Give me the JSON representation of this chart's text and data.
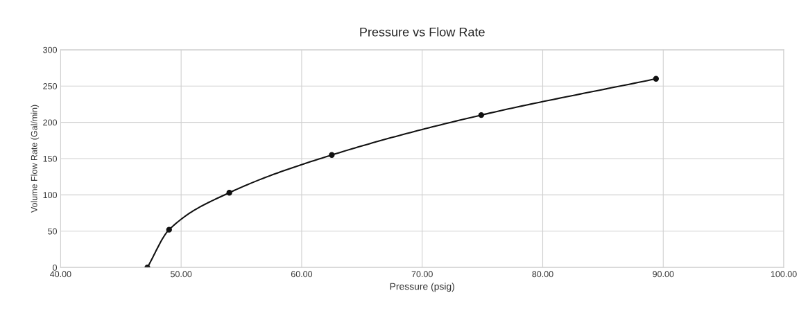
{
  "chart_data": {
    "type": "line",
    "title": "Pressure vs Flow Rate",
    "xlabel": "Pressure (psig)",
    "ylabel": "Volume Flow Rate (Gal/min)",
    "x": [
      47.2,
      49.0,
      54.0,
      62.5,
      74.9,
      89.4
    ],
    "series": [
      {
        "color": "#111111",
        "values": [
          0,
          52,
          103,
          155,
          210,
          260
        ]
      }
    ],
    "xlim": [
      40,
      100
    ],
    "xticks": [
      {
        "value": 40,
        "label": "40.00"
      },
      {
        "value": 50,
        "label": "50.00"
      },
      {
        "value": 60,
        "label": "60.00"
      },
      {
        "value": 70,
        "label": "70.00"
      },
      {
        "value": 80,
        "label": "80.00"
      },
      {
        "value": 90,
        "label": "90.00"
      },
      {
        "value": 100,
        "label": "100.00"
      }
    ],
    "ylim": [
      0,
      300
    ],
    "yticks": [
      0,
      50,
      100,
      150,
      200,
      250,
      300
    ],
    "grid": true,
    "marker": "circle",
    "line_style": "solid"
  }
}
